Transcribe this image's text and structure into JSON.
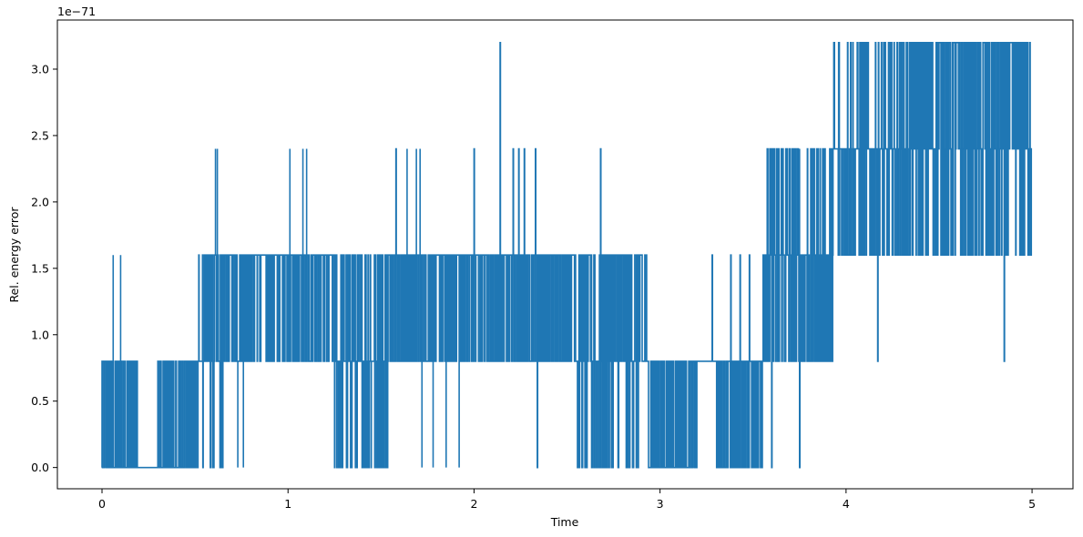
{
  "chart_data": {
    "type": "line",
    "title": "",
    "xlabel": "Time",
    "ylabel": "Rel. energy error",
    "y_scale_note": "1e−71",
    "xlim": [
      -0.24,
      5.22
    ],
    "ylim": [
      -0.16,
      3.37
    ],
    "x_ticks": [
      0,
      1,
      2,
      3,
      4,
      5
    ],
    "x_tick_labels": [
      "0",
      "1",
      "2",
      "3",
      "4",
      "5"
    ],
    "y_ticks": [
      0.0,
      0.5,
      1.0,
      1.5,
      2.0,
      2.5,
      3.0
    ],
    "y_tick_labels": [
      "0.0",
      "0.5",
      "1.0",
      "1.5",
      "2.0",
      "2.5",
      "3.0"
    ],
    "grid": false,
    "series_color": "#1f77b4",
    "levels": [
      0.0,
      0.8,
      1.6,
      2.4,
      3.2
    ],
    "segments": [
      {
        "start": 0.0,
        "end": 0.19,
        "level_set": [
          0,
          1
        ],
        "weights": [
          0.55,
          0.45
        ],
        "spike_at": [
          [
            0.06,
            2
          ],
          [
            0.1,
            2
          ]
        ]
      },
      {
        "start": 0.19,
        "end": 0.52,
        "level_set": [
          0,
          1
        ],
        "weights": [
          0.6,
          0.4
        ],
        "flat": [
          [
            0.19,
            0.3,
            0
          ]
        ]
      },
      {
        "start": 0.52,
        "end": 0.66,
        "level_set": [
          1,
          2,
          0
        ],
        "weights": [
          0.5,
          0.4,
          0.1
        ],
        "spike_at": [
          [
            0.61,
            3
          ],
          [
            0.62,
            3
          ]
        ]
      },
      {
        "start": 0.66,
        "end": 1.25,
        "level_set": [
          1,
          2
        ],
        "weights": [
          0.35,
          0.65
        ],
        "spike_at": [
          [
            1.01,
            3
          ],
          [
            1.08,
            3
          ],
          [
            1.1,
            3
          ]
        ],
        "drop_at": [
          [
            0.73,
            0
          ],
          [
            0.76,
            0
          ]
        ]
      },
      {
        "start": 1.25,
        "end": 1.55,
        "level_set": [
          0,
          1,
          2
        ],
        "weights": [
          0.25,
          0.4,
          0.35
        ],
        "drop_at": [
          [
            1.25,
            0
          ]
        ]
      },
      {
        "start": 1.55,
        "end": 2.0,
        "level_set": [
          1,
          2
        ],
        "weights": [
          0.45,
          0.55
        ],
        "spike_at": [
          [
            1.58,
            3
          ],
          [
            1.64,
            3
          ],
          [
            1.69,
            3
          ],
          [
            1.71,
            3
          ]
        ],
        "drop_at": [
          [
            1.72,
            0
          ],
          [
            1.78,
            0
          ],
          [
            1.85,
            0
          ],
          [
            1.92,
            0
          ]
        ]
      },
      {
        "start": 2.0,
        "end": 2.55,
        "level_set": [
          1,
          2
        ],
        "weights": [
          0.4,
          0.6
        ],
        "spike_at": [
          [
            2.0,
            3
          ],
          [
            2.14,
            4
          ],
          [
            2.21,
            3
          ],
          [
            2.24,
            3
          ],
          [
            2.27,
            3
          ],
          [
            2.33,
            3
          ]
        ],
        "drop_at": [
          [
            2.34,
            0
          ]
        ]
      },
      {
        "start": 2.55,
        "end": 2.93,
        "level_set": [
          0,
          1,
          2
        ],
        "weights": [
          0.2,
          0.45,
          0.35
        ],
        "spike_at": [
          [
            2.68,
            3
          ]
        ]
      },
      {
        "start": 2.93,
        "end": 3.55,
        "level_set": [
          0,
          1
        ],
        "weights": [
          0.45,
          0.55
        ],
        "spike_at": [
          [
            3.28,
            2
          ],
          [
            3.38,
            2
          ],
          [
            3.43,
            2
          ],
          [
            3.48,
            2
          ]
        ],
        "flat": [
          [
            3.2,
            3.3,
            1
          ]
        ]
      },
      {
        "start": 3.55,
        "end": 3.93,
        "level_set": [
          1,
          2,
          3
        ],
        "weights": [
          0.4,
          0.4,
          0.2
        ],
        "drop_at": [
          [
            3.6,
            0
          ],
          [
            3.75,
            0
          ]
        ]
      },
      {
        "start": 3.93,
        "end": 4.35,
        "level_set": [
          2,
          3,
          4
        ],
        "weights": [
          0.35,
          0.45,
          0.2
        ],
        "drop_at": [
          [
            4.17,
            1
          ]
        ]
      },
      {
        "start": 4.35,
        "end": 5.0,
        "level_set": [
          2,
          3,
          4
        ],
        "weights": [
          0.25,
          0.35,
          0.4
        ],
        "drop_at": [
          [
            4.85,
            1
          ]
        ]
      }
    ]
  }
}
